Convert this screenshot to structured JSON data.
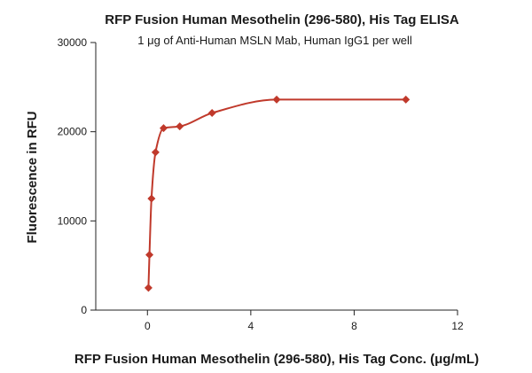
{
  "chart_data": {
    "type": "scatter",
    "title": "RFP Fusion Human Mesothelin (296-580), His Tag ELISA",
    "subtitle": "1 μg of Anti-Human MSLN Mab, Human IgG1 per well",
    "xlabel": "RFP Fusion Human Mesothelin (296-580), His Tag Conc. (μg/mL)",
    "ylabel": "Fluorescence in RFU",
    "xlim": [
      -2,
      12
    ],
    "ylim": [
      0,
      30000
    ],
    "x_ticks": [
      0,
      4,
      8,
      12
    ],
    "y_ticks": [
      0,
      10000,
      20000,
      30000
    ],
    "x_tick_labels": [
      "0",
      "4",
      "8",
      "12"
    ],
    "y_tick_labels": [
      "0",
      "10000",
      "20000",
      "30000"
    ],
    "grid": false,
    "legend": "none",
    "color": "#c0392b",
    "marker": "diamond",
    "fit_curve": true,
    "series": [
      {
        "x": [
          0.039,
          0.078,
          0.156,
          0.313,
          0.625,
          1.25,
          2.5,
          5,
          10
        ],
        "y": [
          2500,
          6200,
          12500,
          17700,
          20400,
          20600,
          22100,
          23600,
          23600
        ]
      }
    ]
  }
}
